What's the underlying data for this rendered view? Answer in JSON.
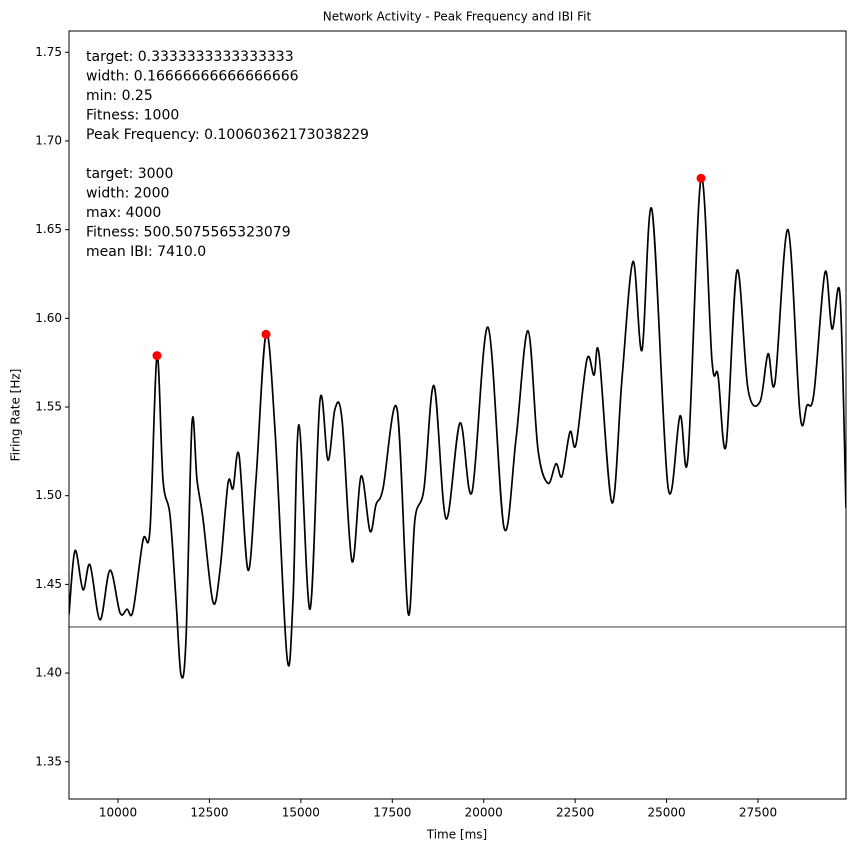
{
  "chart_data": {
    "type": "line",
    "title": "Network Activity - Peak Frequency and IBI Fit",
    "xlabel": "Time [ms]",
    "ylabel": "Firing Rate [Hz]",
    "xlim": [
      8660,
      29906
    ],
    "ylim": [
      1.329,
      1.762
    ],
    "xticks": [
      10000,
      12500,
      15000,
      17500,
      20000,
      22500,
      25000,
      27500
    ],
    "yticks": [
      1.35,
      {
        "value": 1.4,
        "label": "1.40"
      },
      1.45,
      {
        "value": 1.5,
        "label": "1.50"
      },
      1.55,
      {
        "value": 1.6,
        "label": "1.60"
      },
      1.65,
      {
        "value": 1.7,
        "label": "1.70"
      },
      1.75
    ],
    "grid": false,
    "reference_line": {
      "value": 1.426,
      "color": "#888888"
    },
    "annotations": [
      [
        "target: 0.3333333333333333",
        "width: 0.16666666666666666",
        "min: 0.25",
        "Fitness: 1000",
        "Peak Frequency: 0.10060362173038229"
      ],
      [
        "target: 3000",
        "width: 2000",
        "max: 4000",
        "Fitness: 500.5075565323079",
        "mean IBI: 7410.0"
      ]
    ],
    "series": [
      {
        "type": "line",
        "color": "#000000",
        "x": [
          8660,
          8824,
          9043,
          9234,
          9508,
          9781,
          10055,
          10246,
          10410,
          10684,
          10875,
          11066,
          11230,
          11422,
          11586,
          11723,
          11859,
          12023,
          12160,
          12324,
          12598,
          12789,
          13008,
          13145,
          13309,
          13555,
          13773,
          14047,
          14293,
          14621,
          14785,
          14949,
          15250,
          15523,
          15742,
          15934,
          16125,
          16398,
          16645,
          16891,
          17055,
          17246,
          17629,
          17930,
          18121,
          18367,
          18641,
          18969,
          19352,
          19680,
          20117,
          20555,
          20883,
          21211,
          21484,
          21758,
          21977,
          22141,
          22359,
          22524,
          22824,
          23016,
          23152,
          23508,
          23781,
          24082,
          24328,
          24602,
          25039,
          25367,
          25586,
          25942,
          26242,
          26406,
          26625,
          26926,
          27227,
          27555,
          27774,
          27965,
          28320,
          28649,
          28840,
          29031,
          29332,
          29524,
          29742,
          29906
        ],
        "values": [
          1.433,
          1.469,
          1.447,
          1.461,
          1.43,
          1.458,
          1.434,
          1.436,
          1.435,
          1.475,
          1.481,
          1.579,
          1.509,
          1.489,
          1.441,
          1.399,
          1.419,
          1.541,
          1.509,
          1.487,
          1.44,
          1.458,
          1.507,
          1.504,
          1.523,
          1.458,
          1.509,
          1.591,
          1.537,
          1.409,
          1.441,
          1.54,
          1.436,
          1.554,
          1.52,
          1.549,
          1.543,
          1.463,
          1.511,
          1.48,
          1.495,
          1.504,
          1.549,
          1.434,
          1.487,
          1.504,
          1.562,
          1.487,
          1.541,
          1.502,
          1.595,
          1.482,
          1.532,
          1.593,
          1.526,
          1.507,
          1.518,
          1.511,
          1.536,
          1.529,
          1.577,
          1.568,
          1.58,
          1.496,
          1.566,
          1.632,
          1.582,
          1.661,
          1.505,
          1.545,
          1.522,
          1.679,
          1.576,
          1.568,
          1.528,
          1.627,
          1.56,
          1.553,
          1.58,
          1.564,
          1.65,
          1.546,
          1.551,
          1.558,
          1.626,
          1.594,
          1.613,
          1.493
        ]
      },
      {
        "type": "scatter",
        "color": "#ff0000",
        "x": [
          11066,
          14047,
          25942
        ],
        "values": [
          1.579,
          1.591,
          1.679
        ]
      }
    ]
  }
}
